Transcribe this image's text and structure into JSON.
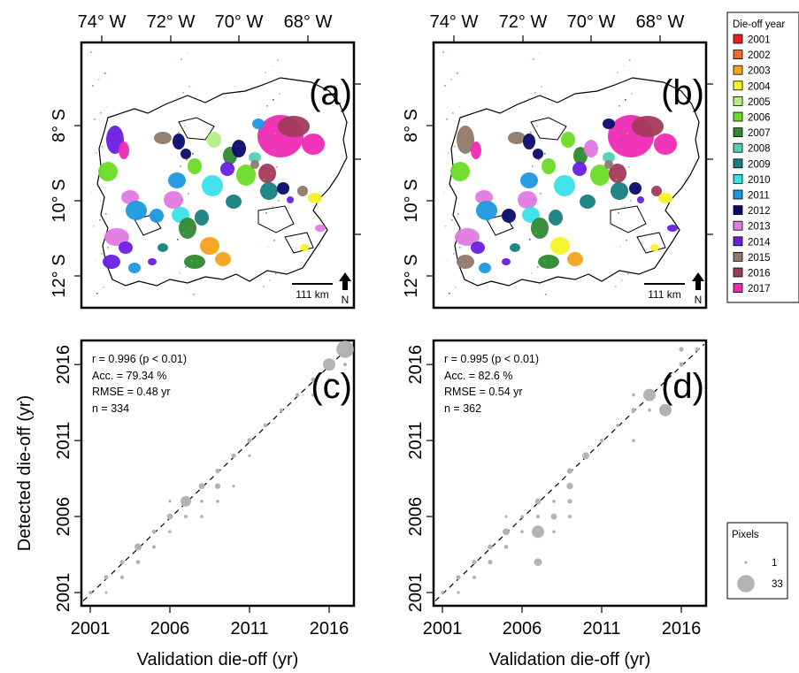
{
  "map_panels": [
    {
      "label": "(a)",
      "lon_ticks": [
        "74° W",
        "72° W",
        "70° W",
        "68° W"
      ],
      "lat_ticks": [
        "8° S",
        "10° S",
        "12° S"
      ],
      "scale_bar": "111 km",
      "north": "N"
    },
    {
      "label": "(b)",
      "lon_ticks": [
        "74° W",
        "72° W",
        "70° W",
        "68° W"
      ],
      "lat_ticks": [
        "8° S",
        "10° S",
        "12° S"
      ],
      "scale_bar": "111 km",
      "north": "N"
    }
  ],
  "year_legend": {
    "title": "Die-off year",
    "entries": [
      {
        "label": "2001",
        "color": "#e8231f"
      },
      {
        "label": "2002",
        "color": "#f26a21"
      },
      {
        "label": "2003",
        "color": "#f7a21b"
      },
      {
        "label": "2004",
        "color": "#f5f226"
      },
      {
        "label": "2005",
        "color": "#b2f083"
      },
      {
        "label": "2006",
        "color": "#6cdc26"
      },
      {
        "label": "2007",
        "color": "#2f8a2f"
      },
      {
        "label": "2008",
        "color": "#52d0b4"
      },
      {
        "label": "2009",
        "color": "#168080"
      },
      {
        "label": "2010",
        "color": "#38e2ea"
      },
      {
        "label": "2011",
        "color": "#1b98e0"
      },
      {
        "label": "2012",
        "color": "#0a0a6e"
      },
      {
        "label": "2013",
        "color": "#e27ae2"
      },
      {
        "label": "2014",
        "color": "#6a1ee2"
      },
      {
        "label": "2015",
        "color": "#8f7a6a"
      },
      {
        "label": "2016",
        "color": "#a33a5a"
      },
      {
        "label": "2017",
        "color": "#f02ab4"
      }
    ]
  },
  "pixel_legend": {
    "title": "Pixels",
    "entries": [
      {
        "label": "1",
        "value": 1
      },
      {
        "label": "33",
        "value": 33
      }
    ]
  },
  "chart_data": [
    {
      "type": "scatter",
      "panel": "(c)",
      "xlabel": "Validation die-off (yr)",
      "ylabel": "Detected die-off (yr)",
      "xticks": [
        "2001",
        "2006",
        "2011",
        "2016"
      ],
      "yticks": [
        "2001",
        "2006",
        "2011",
        "2016"
      ],
      "xlim": [
        2001,
        2017
      ],
      "ylim": [
        2001,
        2017
      ],
      "stats": [
        "r = 0.996 (p < 0.01)",
        "Acc. = 79.34 %",
        "RMSE = 0.48 yr",
        "n = 334"
      ],
      "one_to_one_line": true,
      "points": [
        {
          "x": 2001,
          "y": 2001,
          "n": 2
        },
        {
          "x": 2002,
          "y": 2001,
          "n": 1
        },
        {
          "x": 2002,
          "y": 2002,
          "n": 5
        },
        {
          "x": 2003,
          "y": 2002,
          "n": 3
        },
        {
          "x": 2003,
          "y": 2003,
          "n": 5
        },
        {
          "x": 2004,
          "y": 2003,
          "n": 4
        },
        {
          "x": 2004,
          "y": 2004,
          "n": 10
        },
        {
          "x": 2005,
          "y": 2004,
          "n": 3
        },
        {
          "x": 2005,
          "y": 2005,
          "n": 4
        },
        {
          "x": 2006,
          "y": 2005,
          "n": 2
        },
        {
          "x": 2006,
          "y": 2006,
          "n": 8
        },
        {
          "x": 2006,
          "y": 2007,
          "n": 1
        },
        {
          "x": 2007,
          "y": 2006,
          "n": 3
        },
        {
          "x": 2007,
          "y": 2007,
          "n": 18
        },
        {
          "x": 2008,
          "y": 2006,
          "n": 2
        },
        {
          "x": 2008,
          "y": 2007,
          "n": 2
        },
        {
          "x": 2008,
          "y": 2008,
          "n": 8
        },
        {
          "x": 2009,
          "y": 2007,
          "n": 2
        },
        {
          "x": 2009,
          "y": 2008,
          "n": 7
        },
        {
          "x": 2009,
          "y": 2009,
          "n": 5
        },
        {
          "x": 2010,
          "y": 2008,
          "n": 1
        },
        {
          "x": 2010,
          "y": 2010,
          "n": 5
        },
        {
          "x": 2011,
          "y": 2010,
          "n": 1
        },
        {
          "x": 2011,
          "y": 2011,
          "n": 5
        },
        {
          "x": 2012,
          "y": 2012,
          "n": 4
        },
        {
          "x": 2013,
          "y": 2013,
          "n": 3
        },
        {
          "x": 2014,
          "y": 2014,
          "n": 3
        },
        {
          "x": 2015,
          "y": 2014,
          "n": 2
        },
        {
          "x": 2015,
          "y": 2015,
          "n": 5
        },
        {
          "x": 2016,
          "y": 2015,
          "n": 3
        },
        {
          "x": 2016,
          "y": 2016,
          "n": 22
        },
        {
          "x": 2017,
          "y": 2016,
          "n": 3
        },
        {
          "x": 2017,
          "y": 2017,
          "n": 33
        }
      ]
    },
    {
      "type": "scatter",
      "panel": "(d)",
      "xlabel": "Validation die-off (yr)",
      "ylabel": "",
      "xticks": [
        "2001",
        "2006",
        "2011",
        "2016"
      ],
      "yticks": [
        "2001",
        "2006",
        "2011",
        "2016"
      ],
      "xlim": [
        2001,
        2017
      ],
      "ylim": [
        2001,
        2017
      ],
      "stats": [
        "r = 0.995 (p < 0.01)",
        "Acc. = 82.6 %",
        "RMSE = 0.54 yr",
        "n = 362"
      ],
      "one_to_one_line": true,
      "points": [
        {
          "x": 2001,
          "y": 2001,
          "n": 2
        },
        {
          "x": 2002,
          "y": 2001,
          "n": 1
        },
        {
          "x": 2002,
          "y": 2002,
          "n": 5
        },
        {
          "x": 2003,
          "y": 2002,
          "n": 3
        },
        {
          "x": 2003,
          "y": 2003,
          "n": 5
        },
        {
          "x": 2004,
          "y": 2003,
          "n": 5
        },
        {
          "x": 2004,
          "y": 2004,
          "n": 6
        },
        {
          "x": 2005,
          "y": 2004,
          "n": 4
        },
        {
          "x": 2005,
          "y": 2005,
          "n": 10
        },
        {
          "x": 2005,
          "y": 2006,
          "n": 1
        },
        {
          "x": 2006,
          "y": 2005,
          "n": 2
        },
        {
          "x": 2006,
          "y": 2006,
          "n": 2
        },
        {
          "x": 2007,
          "y": 2003,
          "n": 12
        },
        {
          "x": 2007,
          "y": 2005,
          "n": 22
        },
        {
          "x": 2007,
          "y": 2006,
          "n": 3
        },
        {
          "x": 2007,
          "y": 2007,
          "n": 8
        },
        {
          "x": 2008,
          "y": 2005,
          "n": 2
        },
        {
          "x": 2008,
          "y": 2006,
          "n": 8
        },
        {
          "x": 2008,
          "y": 2007,
          "n": 2
        },
        {
          "x": 2009,
          "y": 2006,
          "n": 3
        },
        {
          "x": 2009,
          "y": 2007,
          "n": 5
        },
        {
          "x": 2009,
          "y": 2008,
          "n": 9
        },
        {
          "x": 2009,
          "y": 2009,
          "n": 7
        },
        {
          "x": 2010,
          "y": 2010,
          "n": 10
        },
        {
          "x": 2011,
          "y": 2011,
          "n": 3
        },
        {
          "x": 2012,
          "y": 2012,
          "n": 2
        },
        {
          "x": 2013,
          "y": 2011,
          "n": 2
        },
        {
          "x": 2013,
          "y": 2013,
          "n": 5
        },
        {
          "x": 2013,
          "y": 2014,
          "n": 2
        },
        {
          "x": 2014,
          "y": 2013,
          "n": 2
        },
        {
          "x": 2014,
          "y": 2014,
          "n": 22
        },
        {
          "x": 2015,
          "y": 2013,
          "n": 22
        },
        {
          "x": 2015,
          "y": 2015,
          "n": 3
        },
        {
          "x": 2016,
          "y": 2016,
          "n": 5
        },
        {
          "x": 2016,
          "y": 2017,
          "n": 5
        },
        {
          "x": 2017,
          "y": 2017,
          "n": 4
        }
      ]
    }
  ]
}
